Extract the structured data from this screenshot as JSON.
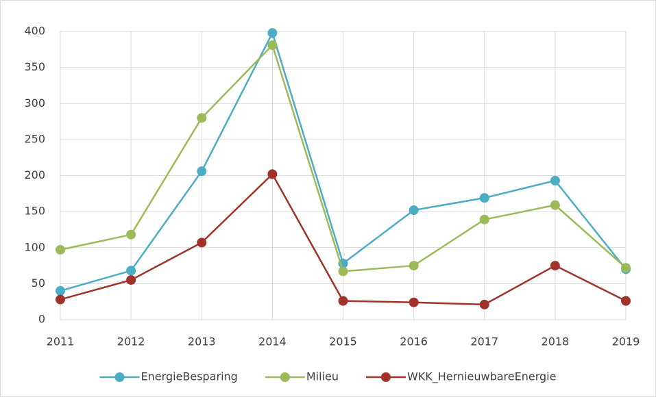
{
  "chart_data": {
    "type": "line",
    "categories": [
      "2011",
      "2012",
      "2013",
      "2014",
      "2015",
      "2016",
      "2017",
      "2018",
      "2019"
    ],
    "series": [
      {
        "name": "EnergieBesparing",
        "color": "#4bacc6",
        "values": [
          40,
          68,
          206,
          398,
          78,
          152,
          169,
          193,
          70
        ]
      },
      {
        "name": "Milieu",
        "color": "#9bbb59",
        "values": [
          97,
          118,
          280,
          381,
          67,
          75,
          139,
          159,
          72
        ]
      },
      {
        "name": "WKK_HernieuwbareEnergie",
        "color": "#a0322a",
        "values": [
          28,
          55,
          107,
          202,
          26,
          24,
          21,
          75,
          26
        ]
      }
    ],
    "ylim": [
      0,
      400
    ],
    "yticks": [
      0,
      50,
      100,
      150,
      200,
      250,
      300,
      350,
      400
    ],
    "grid": true,
    "legend": "bottom"
  }
}
